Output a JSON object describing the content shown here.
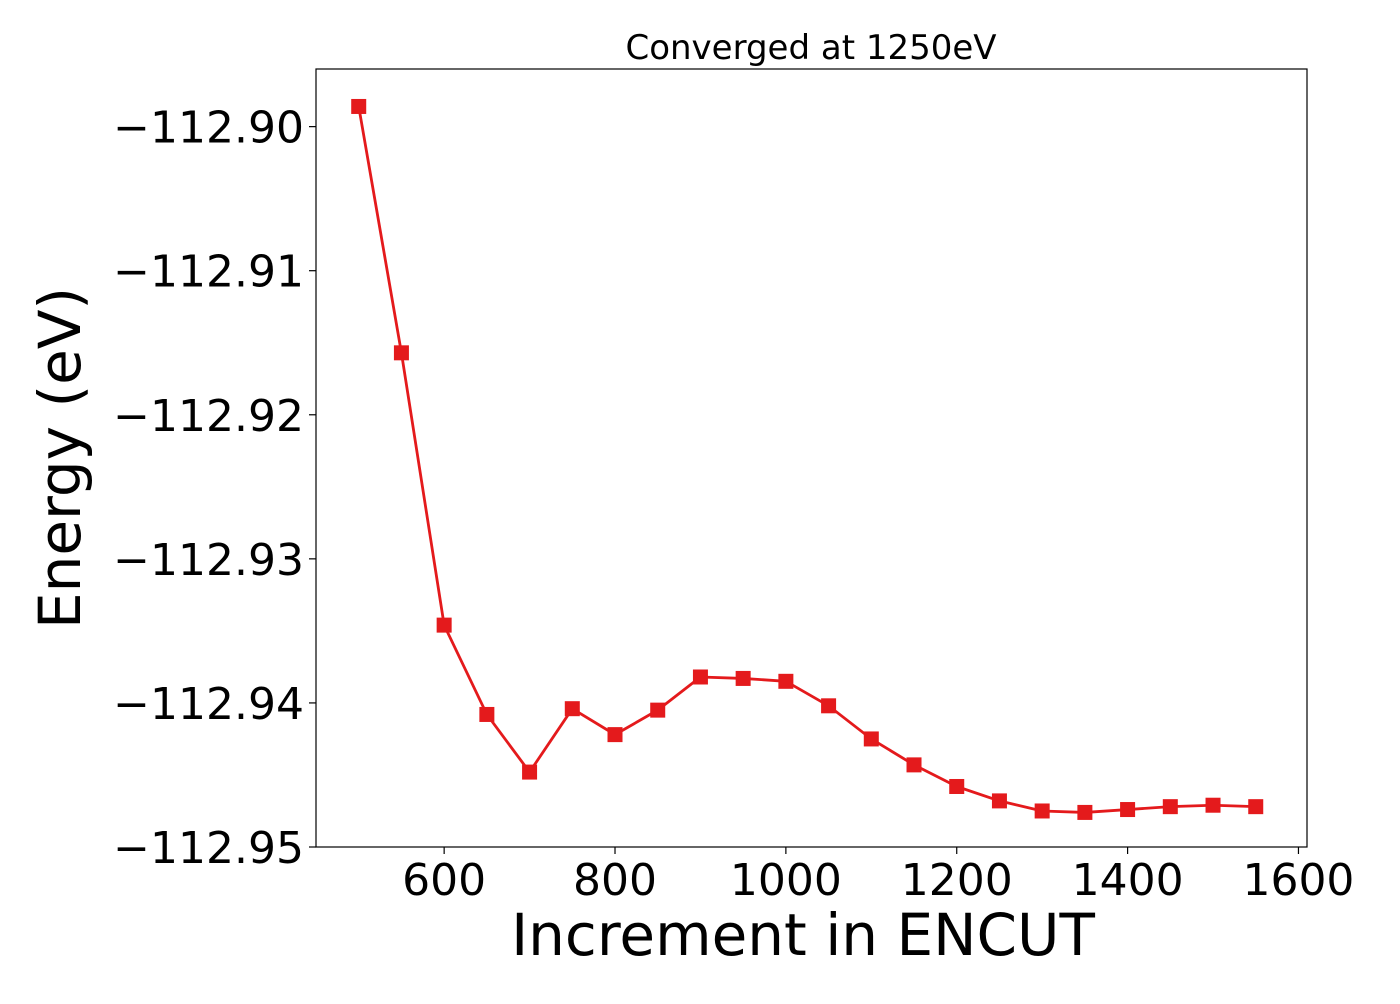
{
  "chart_data": {
    "type": "line",
    "title": "Converged at 1250eV",
    "xlabel": "Increment in ENCUT",
    "ylabel": "Energy (eV)",
    "xlim": [
      450,
      1610
    ],
    "ylim": [
      -112.95,
      -112.896
    ],
    "x_ticks": [
      600,
      800,
      1000,
      1200,
      1400,
      1600
    ],
    "x_tick_labels": [
      "600",
      "800",
      "1000",
      "1200",
      "1400",
      "1600"
    ],
    "y_ticks": [
      -112.9,
      -112.91,
      -112.92,
      -112.93,
      -112.94,
      -112.95
    ],
    "y_tick_labels": [
      "−112.90",
      "−112.91",
      "−112.92",
      "−112.93",
      "−112.94",
      "−112.95"
    ],
    "grid": false,
    "legend": false,
    "series": [
      {
        "color": "#e41a1c",
        "marker": "square",
        "x": [
          500,
          550,
          600,
          650,
          700,
          750,
          800,
          850,
          900,
          950,
          1000,
          1050,
          1100,
          1150,
          1200,
          1250,
          1300,
          1350,
          1400,
          1450,
          1500,
          1550
        ],
        "y": [
          -112.8986,
          -112.9157,
          -112.9346,
          -112.9408,
          -112.9448,
          -112.9404,
          -112.9422,
          -112.9405,
          -112.9382,
          -112.9383,
          -112.9385,
          -112.9402,
          -112.9425,
          -112.9443,
          -112.9458,
          -112.9468,
          -112.9475,
          -112.9476,
          -112.9474,
          -112.9472,
          -112.9471,
          -112.9472
        ]
      }
    ]
  }
}
